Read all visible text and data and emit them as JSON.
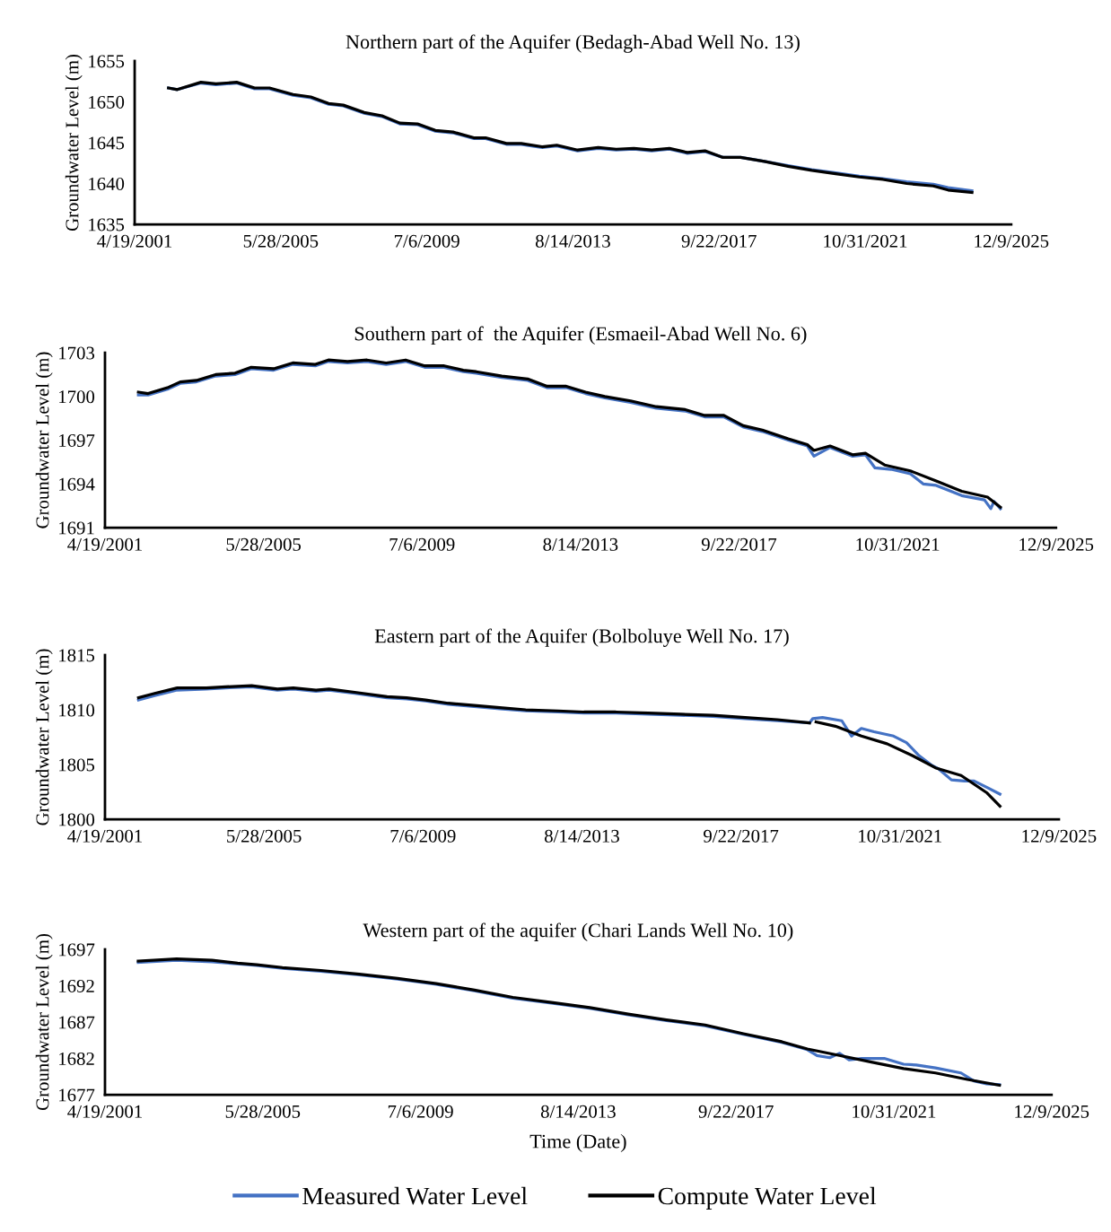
{
  "chart_data": [
    {
      "type": "line",
      "title": "Northern part of the Aquifer (Bedagh-Abad Well No. 13)",
      "ylabel": "Groundwater Level (m)",
      "xlim": [
        "2001-04-19",
        "2025-12-09"
      ],
      "xticks": [
        {
          "value": "2001-04-19",
          "label": "4/19/2001"
        },
        {
          "value": "2005-05-28",
          "label": "5/28/2005"
        },
        {
          "value": "2009-07-06",
          "label": "7/6/2009"
        },
        {
          "value": "2013-08-14",
          "label": "8/14/2013"
        },
        {
          "value": "2017-09-22",
          "label": "9/22/2017"
        },
        {
          "value": "2021-10-31",
          "label": "10/31/2021"
        },
        {
          "value": "2025-12-09",
          "label": "12/9/2025"
        }
      ],
      "ylim": [
        1635,
        1655
      ],
      "yticks": [
        1635,
        1640,
        1645,
        1650,
        1655
      ],
      "series": [
        {
          "color": "#4472c4",
          "x": [
            "2002-04",
            "2002-07",
            "2003-03",
            "2003-08",
            "2004-03",
            "2004-09",
            "2005-02",
            "2005-10",
            "2006-04",
            "2006-10",
            "2007-03",
            "2007-10",
            "2008-04",
            "2008-10",
            "2009-04",
            "2009-10",
            "2010-04",
            "2010-11",
            "2011-03",
            "2011-10",
            "2012-03",
            "2012-10",
            "2013-03",
            "2013-10",
            "2014-05",
            "2014-11",
            "2015-05",
            "2015-11",
            "2016-05",
            "2016-11",
            "2017-05",
            "2017-11",
            "2018-05",
            "2019-01",
            "2019-09",
            "2020-05",
            "2021-01",
            "2021-09",
            "2022-05",
            "2023-01",
            "2023-10",
            "2024-03",
            "2024-11"
          ],
          "values": [
            1651.7,
            1651.5,
            1652.3,
            1652.1,
            1652.3,
            1651.6,
            1651.6,
            1650.8,
            1650.5,
            1649.7,
            1649.5,
            1648.6,
            1648.2,
            1647.3,
            1647.2,
            1646.4,
            1646.2,
            1645.5,
            1645.5,
            1644.8,
            1644.8,
            1644.4,
            1644.6,
            1644.0,
            1644.3,
            1644.1,
            1644.2,
            1644.0,
            1644.2,
            1643.7,
            1643.9,
            1643.2,
            1643.2,
            1642.7,
            1642.2,
            1641.7,
            1641.3,
            1640.9,
            1640.6,
            1640.2,
            1639.9,
            1639.5,
            1639.1
          ]
        },
        {
          "color": "#000000",
          "x": [
            "2002-04",
            "2002-07",
            "2003-03",
            "2003-08",
            "2004-03",
            "2004-09",
            "2005-02",
            "2005-10",
            "2006-04",
            "2006-10",
            "2007-03",
            "2007-10",
            "2008-04",
            "2008-10",
            "2009-04",
            "2009-10",
            "2010-04",
            "2010-11",
            "2011-03",
            "2011-10",
            "2012-03",
            "2012-10",
            "2013-03",
            "2013-10",
            "2014-05",
            "2014-11",
            "2015-05",
            "2015-11",
            "2016-05",
            "2016-11",
            "2017-05",
            "2017-11",
            "2018-05",
            "2019-01",
            "2019-09",
            "2020-05",
            "2021-01",
            "2021-09",
            "2022-05",
            "2023-01",
            "2023-10",
            "2024-03",
            "2024-11"
          ],
          "values": [
            1651.7,
            1651.5,
            1652.4,
            1652.2,
            1652.4,
            1651.7,
            1651.7,
            1650.9,
            1650.6,
            1649.8,
            1649.6,
            1648.7,
            1648.3,
            1647.4,
            1647.3,
            1646.5,
            1646.3,
            1645.6,
            1645.6,
            1644.9,
            1644.9,
            1644.5,
            1644.7,
            1644.1,
            1644.4,
            1644.2,
            1644.3,
            1644.1,
            1644.3,
            1643.8,
            1644.0,
            1643.2,
            1643.2,
            1642.7,
            1642.1,
            1641.6,
            1641.2,
            1640.8,
            1640.5,
            1640.0,
            1639.7,
            1639.2,
            1638.9
          ]
        }
      ]
    },
    {
      "type": "line",
      "title": "Southern part of  the Aquifer (Esmaeil-Abad Well No. 6)",
      "ylabel": "Groundwater Level (m)",
      "xlim": [
        "2001-04-19",
        "2025-12-09"
      ],
      "xticks": [
        {
          "value": "2001-04-19",
          "label": "4/19/2001"
        },
        {
          "value": "2005-05-28",
          "label": "5/28/2005"
        },
        {
          "value": "2009-07-06",
          "label": "7/6/2009"
        },
        {
          "value": "2013-08-14",
          "label": "8/14/2013"
        },
        {
          "value": "2017-09-22",
          "label": "9/22/2017"
        },
        {
          "value": "2021-10-31",
          "label": "10/31/2021"
        },
        {
          "value": "2025-12-09",
          "label": "12/9/2025"
        }
      ],
      "ylim": [
        1691,
        1703
      ],
      "yticks": [
        1691,
        1694,
        1697,
        1700,
        1703
      ],
      "series": [
        {
          "color": "#4472c4",
          "x": [
            "2002-03",
            "2002-06",
            "2002-12",
            "2003-04",
            "2003-09",
            "2004-03",
            "2004-09",
            "2005-02",
            "2005-09",
            "2006-03",
            "2006-10",
            "2007-02",
            "2007-08",
            "2008-02",
            "2008-08",
            "2009-02",
            "2009-08",
            "2010-02",
            "2010-08",
            "2010-12",
            "2011-08",
            "2012-04",
            "2012-10",
            "2013-04",
            "2013-10",
            "2014-04",
            "2014-12",
            "2015-08",
            "2016-05",
            "2016-11",
            "2017-05",
            "2017-11",
            "2018-05",
            "2019-01",
            "2019-07",
            "2019-09",
            "2020-02",
            "2020-09",
            "2021-01",
            "2021-04",
            "2021-09",
            "2022-03",
            "2022-07",
            "2022-11",
            "2023-07",
            "2024-02",
            "2024-04",
            "2024-05",
            "2024-07"
          ],
          "values": [
            1700.1,
            1700.1,
            1700.5,
            1700.9,
            1701.0,
            1701.4,
            1701.5,
            1701.9,
            1701.8,
            1702.2,
            1702.1,
            1702.4,
            1702.3,
            1702.4,
            1702.2,
            1702.4,
            1702.0,
            1702.0,
            1701.7,
            1701.6,
            1701.3,
            1701.1,
            1700.6,
            1700.6,
            1700.2,
            1699.9,
            1699.6,
            1699.2,
            1699.0,
            1698.6,
            1698.6,
            1697.9,
            1697.6,
            1697.0,
            1696.6,
            1695.9,
            1696.5,
            1695.9,
            1696.0,
            1695.1,
            1695.0,
            1694.7,
            1694.0,
            1693.9,
            1693.2,
            1692.9,
            1692.3,
            1692.8,
            1692.3
          ]
        },
        {
          "color": "#000000",
          "x": [
            "2002-03",
            "2002-06",
            "2002-12",
            "2003-04",
            "2003-09",
            "2004-03",
            "2004-09",
            "2005-02",
            "2005-09",
            "2006-03",
            "2006-10",
            "2007-02",
            "2007-08",
            "2008-02",
            "2008-08",
            "2009-02",
            "2009-08",
            "2010-02",
            "2010-08",
            "2010-12",
            "2011-08",
            "2012-04",
            "2012-10",
            "2013-04",
            "2013-10",
            "2014-04",
            "2014-12",
            "2015-08",
            "2016-05",
            "2016-11",
            "2017-05",
            "2017-11",
            "2018-05",
            "2019-01",
            "2019-07",
            "2019-09",
            "2020-02",
            "2020-09",
            "2021-01",
            "2021-07",
            "2022-03",
            "2022-11",
            "2023-07",
            "2024-03",
            "2024-07"
          ],
          "values": [
            1700.3,
            1700.2,
            1700.6,
            1701.0,
            1701.1,
            1701.5,
            1701.6,
            1702.0,
            1701.9,
            1702.3,
            1702.2,
            1702.5,
            1702.4,
            1702.5,
            1702.3,
            1702.5,
            1702.1,
            1702.1,
            1701.8,
            1701.7,
            1701.4,
            1701.2,
            1700.7,
            1700.7,
            1700.3,
            1700.0,
            1699.7,
            1699.3,
            1699.1,
            1698.7,
            1698.7,
            1698.0,
            1697.7,
            1697.1,
            1696.7,
            1696.3,
            1696.6,
            1696.0,
            1696.1,
            1695.3,
            1694.9,
            1694.2,
            1693.5,
            1693.1,
            1692.4
          ]
        }
      ]
    },
    {
      "type": "line",
      "title": "Eastern part of the Aquifer (Bolboluye Well No. 17)",
      "ylabel": "Groundwater Level (m)",
      "xlim": [
        "2001-04-19",
        "2025-12-09"
      ],
      "xticks": [
        {
          "value": "2001-04-19",
          "label": "4/19/2001"
        },
        {
          "value": "2005-05-28",
          "label": "5/28/2005"
        },
        {
          "value": "2009-07-06",
          "label": "7/6/2009"
        },
        {
          "value": "2013-08-14",
          "label": "8/14/2013"
        },
        {
          "value": "2017-09-22",
          "label": "9/22/2017"
        },
        {
          "value": "2021-10-31",
          "label": "10/31/2021"
        },
        {
          "value": "2025-12-09",
          "label": "12/9/2025"
        }
      ],
      "ylim": [
        1800,
        1815
      ],
      "yticks": [
        1800,
        1805,
        1810,
        1815
      ],
      "series": [
        {
          "color": "#4472c4",
          "x": [
            "2002-03",
            "2002-08",
            "2003-03",
            "2003-12",
            "2004-06",
            "2005-02",
            "2005-10",
            "2006-03",
            "2006-10",
            "2007-02",
            "2007-10",
            "2008-08",
            "2009-02",
            "2009-08",
            "2010-03",
            "2010-11",
            "2011-07",
            "2012-03",
            "2013-01",
            "2013-09",
            "2014-07",
            "2015-05",
            "2016-03",
            "2017-01",
            "2017-11",
            "2018-09",
            "2019-07",
            "2019-08",
            "2019-11",
            "2020-05",
            "2020-08",
            "2020-11",
            "2021-03",
            "2021-09",
            "2022-01",
            "2022-05",
            "2022-09",
            "2022-11",
            "2023-03",
            "2023-07",
            "2023-10",
            "2024-02",
            "2024-06"
          ],
          "values": [
            1810.9,
            1811.3,
            1811.8,
            1811.9,
            1812.0,
            1812.1,
            1811.8,
            1811.9,
            1811.7,
            1811.8,
            1811.5,
            1811.1,
            1811.0,
            1810.8,
            1810.5,
            1810.3,
            1810.1,
            1809.9,
            1809.8,
            1809.7,
            1809.7,
            1809.6,
            1809.5,
            1809.4,
            1809.2,
            1809.0,
            1808.8,
            1809.2,
            1809.3,
            1809.0,
            1807.6,
            1808.3,
            1808.0,
            1807.6,
            1807.0,
            1805.8,
            1804.9,
            1804.6,
            1803.6,
            1803.5,
            1803.5,
            1802.9,
            1802.3
          ]
        },
        {
          "color": "#000000",
          "x": [
            "2002-03",
            "2002-08",
            "2003-03",
            "2003-12",
            "2004-06",
            "2005-02",
            "2005-10",
            "2006-03",
            "2006-10",
            "2007-02",
            "2007-10",
            "2008-08",
            "2009-02",
            "2009-08",
            "2010-03",
            "2010-11",
            "2011-07",
            "2012-03",
            "2013-01",
            "2013-09",
            "2014-07",
            "2015-05",
            "2016-03",
            "2017-01",
            "2017-11",
            "2018-09",
            "2019-07",
            "2019-08",
            "2019-09",
            "2020-03",
            "2020-11",
            "2021-07",
            "2022-03",
            "2022-10",
            "2023-06",
            "2024-02",
            "2024-06"
          ],
          "values": [
            1811.1,
            1811.5,
            1812.0,
            1812.0,
            1812.1,
            1812.2,
            1811.9,
            1812.0,
            1811.8,
            1811.9,
            1811.6,
            1811.2,
            1811.1,
            1810.9,
            1810.6,
            1810.4,
            1810.2,
            1810.0,
            1809.9,
            1809.8,
            1809.8,
            1809.7,
            1809.6,
            1809.5,
            1809.3,
            1809.1,
            1808.8,
            null,
            1808.9,
            1808.5,
            1807.6,
            1806.9,
            1805.8,
            1804.7,
            1804.0,
            1802.4,
            1801.2
          ]
        }
      ]
    },
    {
      "type": "line",
      "title": "Western part of the aquifer (Chari Lands Well No. 10)",
      "ylabel": "Groundwater Level (m)",
      "xlabel": "Time (Date)",
      "legend": "bottom",
      "xlim": [
        "2001-04-19",
        "2025-12-09"
      ],
      "xticks": [
        {
          "value": "2001-04-19",
          "label": "4/19/2001"
        },
        {
          "value": "2005-05-28",
          "label": "5/28/2005"
        },
        {
          "value": "2009-07-06",
          "label": "7/6/2009"
        },
        {
          "value": "2013-08-14",
          "label": "8/14/2013"
        },
        {
          "value": "2017-09-22",
          "label": "9/22/2017"
        },
        {
          "value": "2021-10-31",
          "label": "10/31/2021"
        },
        {
          "value": "2025-12-09",
          "label": "12/9/2025"
        }
      ],
      "ylim": [
        1677,
        1697
      ],
      "yticks": [
        1677,
        1682,
        1687,
        1692,
        1697
      ],
      "series": [
        {
          "name": "Measured Water Level",
          "color": "#4472c4",
          "x": [
            "2002-03",
            "2003-03",
            "2004-02",
            "2004-10",
            "2005-04",
            "2005-12",
            "2006-12",
            "2007-12",
            "2008-12",
            "2009-12",
            "2010-12",
            "2011-12",
            "2012-12",
            "2013-12",
            "2014-12",
            "2015-12",
            "2016-12",
            "2017-12",
            "2018-12",
            "2019-08",
            "2019-11",
            "2020-03",
            "2020-06",
            "2020-09",
            "2021-01",
            "2021-04",
            "2021-08",
            "2022-02",
            "2022-06",
            "2022-12",
            "2023-08",
            "2023-12",
            "2024-04",
            "2024-08"
          ],
          "values": [
            1695.2,
            1695.5,
            1695.3,
            1695.0,
            1694.8,
            1694.4,
            1694.0,
            1693.5,
            1692.9,
            1692.2,
            1691.3,
            1690.3,
            1689.6,
            1688.9,
            1688.0,
            1687.2,
            1686.5,
            1685.3,
            1684.2,
            1683.2,
            1682.4,
            1682.1,
            1682.7,
            1681.8,
            1682.0,
            1682.0,
            1682.0,
            1681.2,
            1681.1,
            1680.7,
            1680.0,
            1678.9,
            1678.5,
            1678.4
          ]
        },
        {
          "name": "Compute Water Level",
          "color": "#000000",
          "x": [
            "2002-03",
            "2003-03",
            "2004-02",
            "2004-10",
            "2005-04",
            "2005-12",
            "2006-12",
            "2007-12",
            "2008-12",
            "2009-12",
            "2010-12",
            "2011-12",
            "2012-12",
            "2013-12",
            "2014-12",
            "2015-12",
            "2016-12",
            "2017-12",
            "2018-12",
            "2019-08",
            "2020-06",
            "2021-04",
            "2022-02",
            "2022-12",
            "2023-10",
            "2024-08"
          ],
          "values": [
            1695.4,
            1695.7,
            1695.5,
            1695.1,
            1694.9,
            1694.5,
            1694.1,
            1693.6,
            1693.0,
            1692.3,
            1691.4,
            1690.4,
            1689.7,
            1689.0,
            1688.1,
            1687.3,
            1686.6,
            1685.4,
            1684.3,
            1683.3,
            1682.4,
            1681.5,
            1680.6,
            1680.0,
            1679.1,
            1678.3
          ]
        }
      ]
    }
  ]
}
